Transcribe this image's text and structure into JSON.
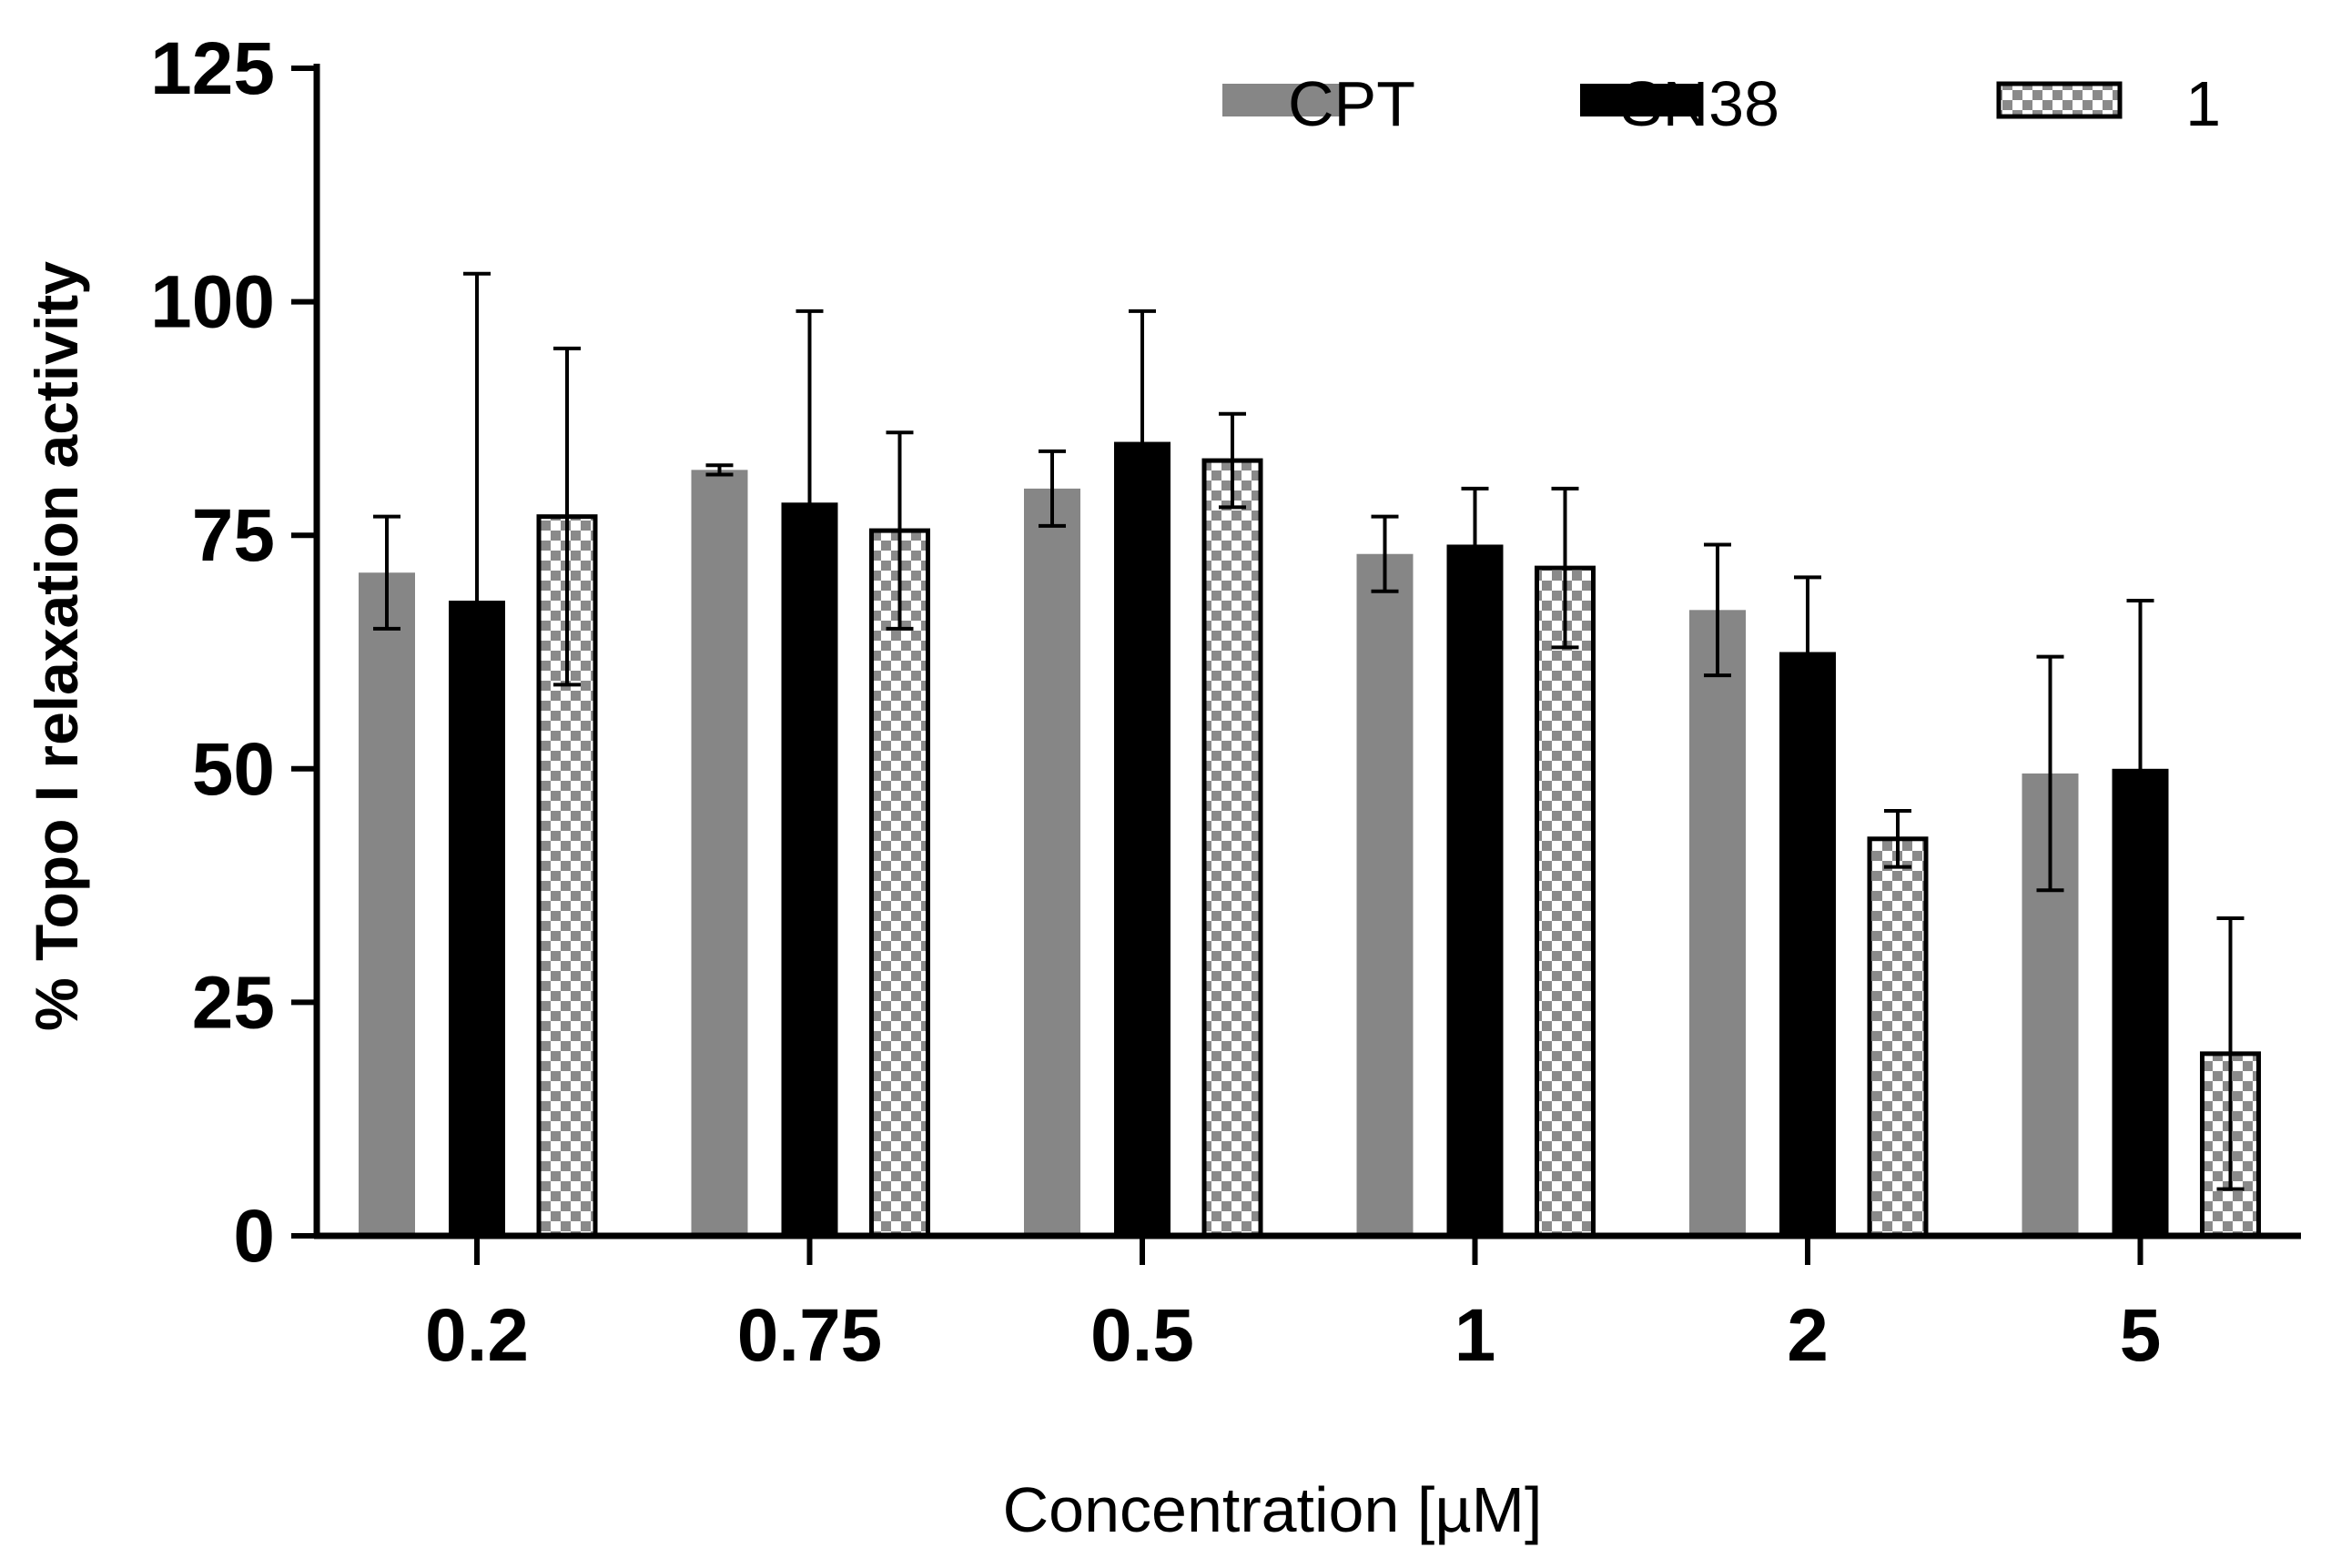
{
  "chart_data": {
    "type": "bar",
    "title": "",
    "xlabel": "Concentration [µM]",
    "ylabel": "% Topo I relaxation activity",
    "ylim": [
      0,
      125
    ],
    "yticks": [
      "0",
      "25",
      "50",
      "75",
      "100",
      "125"
    ],
    "categories": [
      "0.2",
      "0.75",
      "0.5",
      "1",
      "2",
      "5"
    ],
    "legend_position": "top-right",
    "series": [
      {
        "name": "CPT",
        "color": "#868686",
        "pattern": "solid",
        "values": [
          71,
          82,
          80,
          73,
          67,
          49.5
        ],
        "errors": [
          6,
          0.5,
          4,
          4,
          7,
          12.5
        ]
      },
      {
        "name": "SN38",
        "color": "#000000",
        "pattern": "solid",
        "values": [
          68,
          78.5,
          85,
          74,
          62.5,
          50
        ],
        "errors": [
          35,
          20.5,
          14,
          6,
          8,
          18
        ]
      },
      {
        "name": "1",
        "color": "#8a8a8a",
        "pattern": "checkered",
        "values": [
          77,
          75.5,
          83,
          71.5,
          42.5,
          19.5
        ],
        "errors": [
          18,
          10.5,
          5,
          8.5,
          3,
          14.5
        ]
      }
    ]
  }
}
